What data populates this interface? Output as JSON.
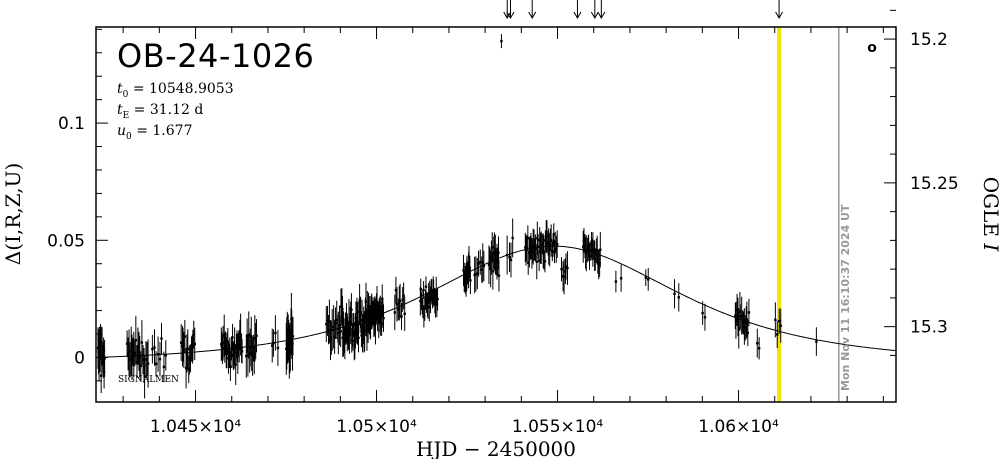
{
  "chart_data": {
    "type": "scatter",
    "title": "OB-24-1026",
    "params": [
      {
        "sym": "t",
        "sub": "0",
        "eq": " = 10548.9053"
      },
      {
        "sym": "t",
        "sub": "E",
        "eq": " = 31.12 d"
      },
      {
        "sym": "u",
        "sub": "0",
        "eq": " = 1.677"
      }
    ],
    "xlabel": "HJD − 2450000",
    "ylabel_left": "Δ(I,R,Z,U)",
    "ylabel_right_text": "OGLE ",
    "ylabel_right_italic": "I",
    "xlim": [
      10422.5,
      10643.5
    ],
    "ylim_left": [
      -0.019,
      0.141
    ],
    "ylim_right": [
      15.3262,
      15.1958
    ],
    "x_ticks": [
      {
        "value": 10450,
        "label": "1.045×10⁴"
      },
      {
        "value": 10500,
        "label": "1.05×10⁴"
      },
      {
        "value": 10550,
        "label": "1.055×10⁴"
      },
      {
        "value": 10600,
        "label": "1.06×10⁴"
      }
    ],
    "y_ticks_left": [
      {
        "value": 0,
        "label": "0"
      },
      {
        "value": 0.05,
        "label": "0.05"
      },
      {
        "value": 0.1,
        "label": "0.1"
      }
    ],
    "y_ticks_right": [
      {
        "value": 15.2,
        "label": "15.2"
      },
      {
        "value": 15.25,
        "label": "15.25"
      },
      {
        "value": 15.3,
        "label": "15.3"
      }
    ],
    "model": {
      "t0": 10548.9053,
      "tE": 31.12,
      "u0": 1.677,
      "baseline": 0.0
    },
    "current_time_line": {
      "x": 10611.2,
      "color": "#f2e600"
    },
    "timestamp_line": {
      "x": 10627.7,
      "label": "Mon Nov 11 16:10:37 2024 UT",
      "color": "#999999"
    },
    "arrows_x": [
      10536.1,
      10537.0,
      10543.0,
      10555.5,
      10560.3,
      10562.1,
      10611.2
    ],
    "bottom_left_label": "SIGNALMEN",
    "corner_mark": "o",
    "groups": [
      {
        "x": [
          10423,
          10425
        ],
        "n": 14,
        "off": 0.0,
        "sc": 0.008,
        "err": 0.008
      },
      {
        "x": [
          10431,
          10437
        ],
        "n": 22,
        "off": 0.0,
        "sc": 0.007,
        "err": 0.008
      },
      {
        "x": [
          10438,
          10442
        ],
        "n": 8,
        "off": 0.0,
        "sc": 0.006,
        "err": 0.007
      },
      {
        "x": [
          10446,
          10450
        ],
        "n": 16,
        "off": 0.0,
        "sc": 0.006,
        "err": 0.007
      },
      {
        "x": [
          10457,
          10463
        ],
        "n": 30,
        "off": 0.0,
        "sc": 0.006,
        "err": 0.007
      },
      {
        "x": [
          10464,
          10467
        ],
        "n": 14,
        "off": 0.0,
        "sc": 0.007,
        "err": 0.008
      },
      {
        "x": [
          10471,
          10473
        ],
        "n": 4,
        "off": 0.0,
        "sc": 0.005,
        "err": 0.007
      },
      {
        "x": [
          10475,
          10477
        ],
        "n": 14,
        "off": 0.0,
        "sc": 0.008,
        "err": 0.009
      },
      {
        "x": [
          10486,
          10490
        ],
        "n": 14,
        "off": 0.0,
        "sc": 0.006,
        "err": 0.008
      },
      {
        "x": [
          10490,
          10493
        ],
        "n": 18,
        "off": 0.0,
        "sc": 0.008,
        "err": 0.008
      },
      {
        "x": [
          10493,
          10497
        ],
        "n": 26,
        "off": 0.0,
        "sc": 0.007,
        "err": 0.007
      },
      {
        "x": [
          10497,
          10502
        ],
        "n": 34,
        "off": 0.0,
        "sc": 0.007,
        "err": 0.007
      },
      {
        "x": [
          10505,
          10508
        ],
        "n": 10,
        "off": 0.0,
        "sc": 0.005,
        "err": 0.006
      },
      {
        "x": [
          10512,
          10517
        ],
        "n": 28,
        "off": -0.002,
        "sc": 0.005,
        "err": 0.005
      },
      {
        "x": [
          10524,
          10526
        ],
        "n": 12,
        "off": 0.0,
        "sc": 0.005,
        "err": 0.006
      },
      {
        "x": [
          10527,
          10530
        ],
        "n": 8,
        "off": 0.0,
        "sc": 0.005,
        "err": 0.007
      },
      {
        "x": [
          10531,
          10534
        ],
        "n": 14,
        "off": 0.0,
        "sc": 0.006,
        "err": 0.007
      },
      {
        "x": [
          10536,
          10538
        ],
        "n": 4,
        "off": -0.002,
        "sc": 0.006,
        "err": 0.007
      },
      {
        "x": [
          10541,
          10550
        ],
        "n": 40,
        "off": 0.0,
        "sc": 0.005,
        "err": 0.006
      },
      {
        "x": [
          10551,
          10553
        ],
        "n": 6,
        "off": -0.008,
        "sc": 0.004,
        "err": 0.006
      },
      {
        "x": [
          10557,
          10562
        ],
        "n": 22,
        "off": 0.0,
        "sc": 0.004,
        "err": 0.006
      },
      {
        "x": [
          10566,
          10568
        ],
        "n": 2,
        "off": -0.008,
        "sc": 0.002,
        "err": 0.005
      },
      {
        "x": [
          10574,
          10576
        ],
        "n": 2,
        "off": -0.002,
        "sc": 0.002,
        "err": 0.005
      },
      {
        "x": [
          10582,
          10584
        ],
        "n": 2,
        "off": -0.002,
        "sc": 0.002,
        "err": 0.005
      },
      {
        "x": [
          10590,
          10591
        ],
        "n": 2,
        "off": -0.004,
        "sc": 0.002,
        "err": 0.005
      },
      {
        "x": [
          10599,
          10603
        ],
        "n": 16,
        "off": 0.0,
        "sc": 0.005,
        "err": 0.007
      },
      {
        "x": [
          10605,
          10606
        ],
        "n": 2,
        "off": -0.008,
        "sc": 0.002,
        "err": 0.005
      },
      {
        "x": [
          10610,
          10612
        ],
        "n": 4,
        "off": 0.004,
        "sc": 0.004,
        "err": 0.006
      },
      {
        "x": [
          10621,
          10622
        ],
        "n": 1,
        "off": 0.0,
        "sc": 0.002,
        "err": 0.005
      }
    ],
    "outliers": [
      {
        "x": 10534.5,
        "y": 0.135,
        "err": 0.003
      }
    ]
  }
}
